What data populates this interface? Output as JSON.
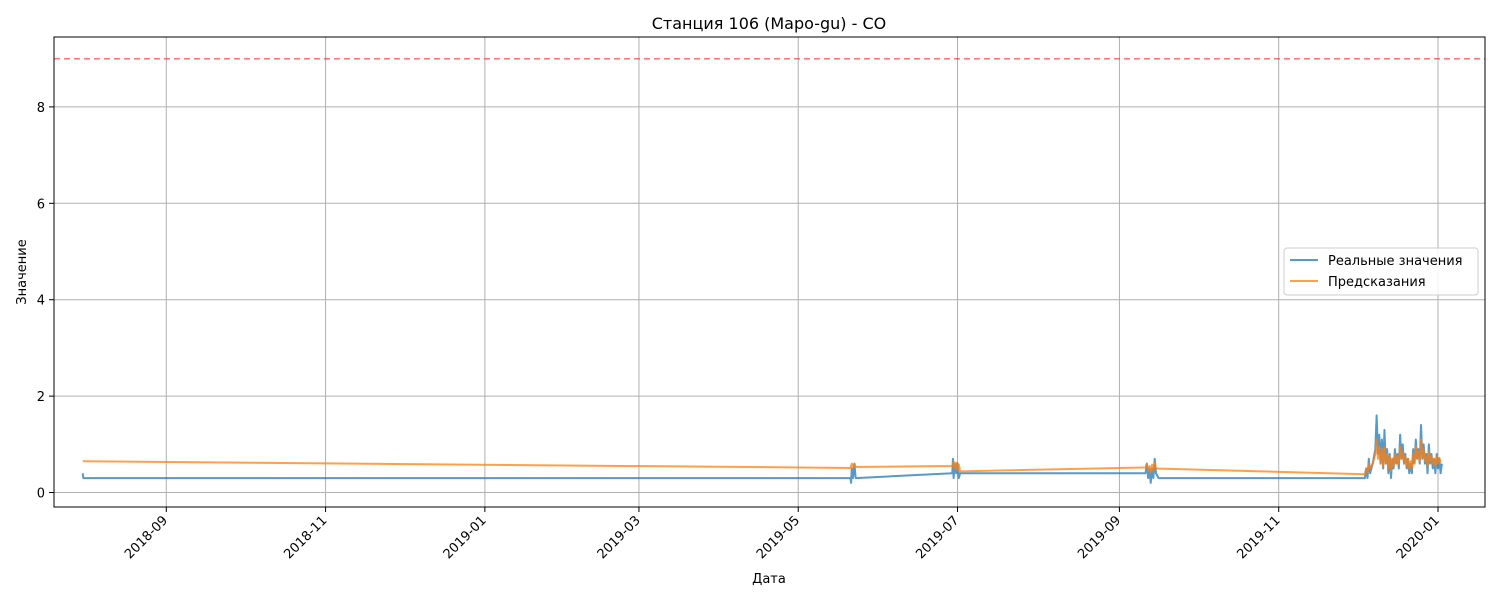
{
  "chart_data": {
    "type": "line",
    "title": "Станция 106 (Mapo-gu) - CO",
    "xlabel": "Дата",
    "ylabel": "Значение",
    "xlim": [
      "2018-07-20",
      "2020-01-19"
    ],
    "ylim": [
      -0.3,
      9.45
    ],
    "x_ticks": [
      "2018-09",
      "2018-11",
      "2019-01",
      "2019-03",
      "2019-05",
      "2019-07",
      "2019-09",
      "2019-11",
      "2020-01"
    ],
    "y_ticks": [
      0,
      2,
      4,
      6,
      8
    ],
    "grid": true,
    "legend_position": "center-right",
    "threshold": {
      "value": 9,
      "color": "#ff0000",
      "style": "dashed"
    },
    "series": [
      {
        "name": "Реальные значения",
        "color": "#1f77b4",
        "points": [
          [
            "2018-07-31T00:00",
            0.4
          ],
          [
            "2018-07-31T06:00",
            0.3
          ],
          [
            "2019-05-21T00:00",
            0.3
          ],
          [
            "2019-05-21T06:00",
            0.2
          ],
          [
            "2019-05-21T12:00",
            0.5
          ],
          [
            "2019-05-22T00:00",
            0.3
          ],
          [
            "2019-05-22T12:00",
            0.6
          ],
          [
            "2019-05-23T00:00",
            0.3
          ],
          [
            "2019-06-29T00:00",
            0.4
          ],
          [
            "2019-06-29T06:00",
            0.7
          ],
          [
            "2019-06-29T12:00",
            0.3
          ],
          [
            "2019-06-30T00:00",
            0.6
          ],
          [
            "2019-06-30T12:00",
            0.4
          ],
          [
            "2019-07-01T00:00",
            0.6
          ],
          [
            "2019-07-01T12:00",
            0.3
          ],
          [
            "2019-07-02T00:00",
            0.4
          ],
          [
            "2019-09-11T00:00",
            0.4
          ],
          [
            "2019-09-11T12:00",
            0.6
          ],
          [
            "2019-09-12T00:00",
            0.3
          ],
          [
            "2019-09-12T12:00",
            0.5
          ],
          [
            "2019-09-13T00:00",
            0.2
          ],
          [
            "2019-09-13T12:00",
            0.5
          ],
          [
            "2019-09-14T00:00",
            0.3
          ],
          [
            "2019-09-14T12:00",
            0.7
          ],
          [
            "2019-09-15T00:00",
            0.4
          ],
          [
            "2019-09-16T00:00",
            0.3
          ],
          [
            "2019-12-04T00:00",
            0.3
          ],
          [
            "2019-12-04T12:00",
            0.5
          ],
          [
            "2019-12-05T00:00",
            0.3
          ],
          [
            "2019-12-05T12:00",
            0.7
          ],
          [
            "2019-12-06T00:00",
            0.4
          ],
          [
            "2019-12-07T00:00",
            0.6
          ],
          [
            "2019-12-08T00:00",
            0.9
          ],
          [
            "2019-12-08T12:00",
            1.6
          ],
          [
            "2019-12-09T00:00",
            0.8
          ],
          [
            "2019-12-09T12:00",
            1.2
          ],
          [
            "2019-12-10T00:00",
            0.6
          ],
          [
            "2019-12-10T12:00",
            1.1
          ],
          [
            "2019-12-11T00:00",
            0.5
          ],
          [
            "2019-12-11T12:00",
            1.3
          ],
          [
            "2019-12-12T00:00",
            0.6
          ],
          [
            "2019-12-12T12:00",
            0.9
          ],
          [
            "2019-12-13T00:00",
            0.4
          ],
          [
            "2019-12-13T12:00",
            0.8
          ],
          [
            "2019-12-14T00:00",
            0.3
          ],
          [
            "2019-12-14T12:00",
            0.7
          ],
          [
            "2019-12-15T00:00",
            0.5
          ],
          [
            "2019-12-15T12:00",
            0.9
          ],
          [
            "2019-12-16T00:00",
            0.6
          ],
          [
            "2019-12-16T12:00",
            0.8
          ],
          [
            "2019-12-17T00:00",
            0.5
          ],
          [
            "2019-12-17T12:00",
            1.2
          ],
          [
            "2019-12-18T00:00",
            0.7
          ],
          [
            "2019-12-18T12:00",
            1.0
          ],
          [
            "2019-12-19T00:00",
            0.6
          ],
          [
            "2019-12-19T12:00",
            0.8
          ],
          [
            "2019-12-20T00:00",
            0.5
          ],
          [
            "2019-12-20T12:00",
            0.7
          ],
          [
            "2019-12-21T00:00",
            0.4
          ],
          [
            "2019-12-21T12:00",
            0.6
          ],
          [
            "2019-12-22T00:00",
            0.4
          ],
          [
            "2019-12-22T12:00",
            0.9
          ],
          [
            "2019-12-23T00:00",
            0.6
          ],
          [
            "2019-12-23T12:00",
            1.1
          ],
          [
            "2019-12-24T00:00",
            0.7
          ],
          [
            "2019-12-24T12:00",
            0.9
          ],
          [
            "2019-12-25T00:00",
            0.6
          ],
          [
            "2019-12-25T12:00",
            1.4
          ],
          [
            "2019-12-26T00:00",
            0.7
          ],
          [
            "2019-12-26T12:00",
            1.0
          ],
          [
            "2019-12-27T00:00",
            0.6
          ],
          [
            "2019-12-27T12:00",
            0.8
          ],
          [
            "2019-12-28T00:00",
            0.4
          ],
          [
            "2019-12-28T12:00",
            1.0
          ],
          [
            "2019-12-29T00:00",
            0.6
          ],
          [
            "2019-12-29T12:00",
            0.8
          ],
          [
            "2019-12-30T00:00",
            0.5
          ],
          [
            "2019-12-30T12:00",
            0.7
          ],
          [
            "2019-12-31T00:00",
            0.4
          ],
          [
            "2019-12-31T12:00",
            0.8
          ],
          [
            "2020-01-01T00:00",
            0.5
          ],
          [
            "2020-01-01T12:00",
            0.7
          ],
          [
            "2020-01-02T00:00",
            0.4
          ],
          [
            "2020-01-02T12:00",
            0.6
          ]
        ]
      },
      {
        "name": "Предсказания",
        "color": "#ff7f0e",
        "points": [
          [
            "2018-07-31T00:00",
            0.65
          ],
          [
            "2019-05-21T00:00",
            0.51
          ],
          [
            "2019-05-21T12:00",
            0.6
          ],
          [
            "2019-05-22T00:00",
            0.52
          ],
          [
            "2019-05-22T12:00",
            0.6
          ],
          [
            "2019-05-23T00:00",
            0.53
          ],
          [
            "2019-06-29T00:00",
            0.55
          ],
          [
            "2019-06-29T12:00",
            0.65
          ],
          [
            "2019-06-30T00:00",
            0.5
          ],
          [
            "2019-06-30T12:00",
            0.62
          ],
          [
            "2019-07-01T00:00",
            0.45
          ],
          [
            "2019-07-01T12:00",
            0.58
          ],
          [
            "2019-07-02T00:00",
            0.44
          ],
          [
            "2019-09-11T00:00",
            0.52
          ],
          [
            "2019-09-11T12:00",
            0.6
          ],
          [
            "2019-09-12T00:00",
            0.45
          ],
          [
            "2019-09-12T12:00",
            0.55
          ],
          [
            "2019-09-13T00:00",
            0.42
          ],
          [
            "2019-09-13T12:00",
            0.58
          ],
          [
            "2019-09-14T00:00",
            0.45
          ],
          [
            "2019-09-14T12:00",
            0.62
          ],
          [
            "2019-09-15T00:00",
            0.5
          ],
          [
            "2019-12-04T00:00",
            0.38
          ],
          [
            "2019-12-04T12:00",
            0.5
          ],
          [
            "2019-12-05T00:00",
            0.42
          ],
          [
            "2019-12-05T12:00",
            0.6
          ],
          [
            "2019-12-06T00:00",
            0.5
          ],
          [
            "2019-12-07T00:00",
            0.6
          ],
          [
            "2019-12-08T00:00",
            0.8
          ],
          [
            "2019-12-08T12:00",
            1.1
          ],
          [
            "2019-12-09T00:00",
            0.7
          ],
          [
            "2019-12-09T12:00",
            0.95
          ],
          [
            "2019-12-10T00:00",
            0.6
          ],
          [
            "2019-12-10T12:00",
            0.9
          ],
          [
            "2019-12-11T00:00",
            0.55
          ],
          [
            "2019-12-11T12:00",
            0.95
          ],
          [
            "2019-12-12T00:00",
            0.6
          ],
          [
            "2019-12-12T12:00",
            0.8
          ],
          [
            "2019-12-13T00:00",
            0.5
          ],
          [
            "2019-12-13T12:00",
            0.75
          ],
          [
            "2019-12-14T00:00",
            0.45
          ],
          [
            "2019-12-14T12:00",
            0.7
          ],
          [
            "2019-12-15T00:00",
            0.55
          ],
          [
            "2019-12-15T12:00",
            0.8
          ],
          [
            "2019-12-16T00:00",
            0.6
          ],
          [
            "2019-12-16T12:00",
            0.75
          ],
          [
            "2019-12-17T00:00",
            0.6
          ],
          [
            "2019-12-17T12:00",
            0.95
          ],
          [
            "2019-12-18T00:00",
            0.7
          ],
          [
            "2019-12-18T12:00",
            0.85
          ],
          [
            "2019-12-19T00:00",
            0.6
          ],
          [
            "2019-12-19T12:00",
            0.75
          ],
          [
            "2019-12-20T00:00",
            0.55
          ],
          [
            "2019-12-20T12:00",
            0.7
          ],
          [
            "2019-12-21T00:00",
            0.5
          ],
          [
            "2019-12-21T12:00",
            0.65
          ],
          [
            "2019-12-22T00:00",
            0.5
          ],
          [
            "2019-12-22T12:00",
            0.8
          ],
          [
            "2019-12-23T00:00",
            0.6
          ],
          [
            "2019-12-23T12:00",
            0.95
          ],
          [
            "2019-12-24T00:00",
            0.7
          ],
          [
            "2019-12-24T12:00",
            0.85
          ],
          [
            "2019-12-25T00:00",
            0.65
          ],
          [
            "2019-12-25T12:00",
            1.1
          ],
          [
            "2019-12-26T00:00",
            0.75
          ],
          [
            "2019-12-26T12:00",
            0.9
          ],
          [
            "2019-12-27T00:00",
            0.65
          ],
          [
            "2019-12-27T12:00",
            0.75
          ],
          [
            "2019-12-28T00:00",
            0.55
          ],
          [
            "2019-12-28T12:00",
            0.85
          ],
          [
            "2019-12-29T00:00",
            0.65
          ],
          [
            "2019-12-29T12:00",
            0.75
          ],
          [
            "2019-12-30T00:00",
            0.6
          ],
          [
            "2019-12-30T12:00",
            0.7
          ],
          [
            "2019-12-31T00:00",
            0.55
          ],
          [
            "2019-12-31T12:00",
            0.75
          ],
          [
            "2020-01-01T00:00",
            0.6
          ],
          [
            "2020-01-01T12:00",
            0.72
          ],
          [
            "2020-01-02T00:00",
            0.62
          ]
        ]
      }
    ]
  }
}
